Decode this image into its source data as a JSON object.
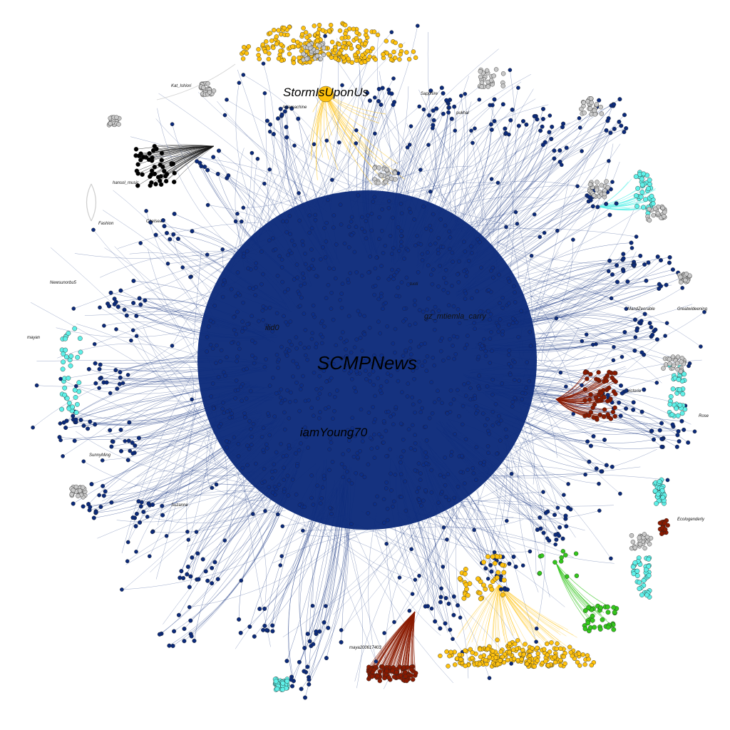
{
  "graph": {
    "background": "#ffffff",
    "cluster_colors": {
      "dominant": "#0b2a7a",
      "gold": "#ffc20e",
      "cyan": "#5ff0e8",
      "gray": "#c8c8c8",
      "black": "#000000",
      "maroon": "#8a1a00",
      "green": "#33c61c"
    },
    "hub_labels": [
      {
        "id": "scmp",
        "text": "SCMPNews"
      },
      {
        "id": "storm",
        "text": "StormIsUponUs"
      },
      {
        "id": "young",
        "text": "iamYoung70"
      }
    ],
    "node_labels": [
      {
        "id": "n1",
        "text": "Kat_Ishiori"
      },
      {
        "id": "n2",
        "text": "ilid0"
      },
      {
        "id": "n3",
        "text": "gz_mtiemla_carry"
      },
      {
        "id": "n4",
        "text": "tuoti"
      },
      {
        "id": "n5",
        "text": "Chelsea"
      },
      {
        "id": "n6",
        "text": "Asiamachine"
      },
      {
        "id": "n7",
        "text": "hansol_music"
      },
      {
        "id": "n8",
        "text": "Newsunorbu5"
      },
      {
        "id": "n9",
        "text": "Fashion"
      },
      {
        "id": "n10",
        "text": "SunnyMing"
      },
      {
        "id": "n11",
        "text": "Suzanne"
      },
      {
        "id": "n12",
        "text": "maya200617403"
      },
      {
        "id": "n13",
        "text": "Greatwideening"
      },
      {
        "id": "n14",
        "text": "MandZeorable"
      },
      {
        "id": "n15",
        "text": "Rose"
      },
      {
        "id": "n16",
        "text": "Ecologenderly"
      },
      {
        "id": "n17",
        "text": "victoria"
      },
      {
        "id": "n18",
        "text": "Sapphire"
      },
      {
        "id": "n19",
        "text": "pukhal"
      },
      {
        "id": "n20",
        "text": "mayan"
      }
    ]
  }
}
